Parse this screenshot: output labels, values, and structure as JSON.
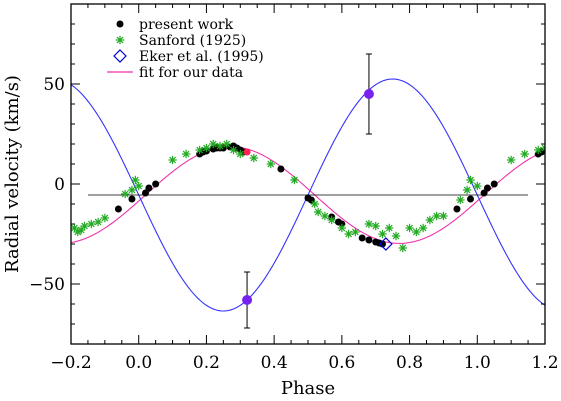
{
  "chart_data": {
    "type": "scatter",
    "xlabel": "Phase",
    "ylabel": "Radial velocity (km/s)",
    "xlim": [
      -0.2,
      1.2
    ],
    "ylim": [
      -80,
      90
    ],
    "x_ticks": [
      -0.2,
      0.0,
      0.2,
      0.4,
      0.6,
      0.8,
      1.0,
      1.2
    ],
    "x_tick_labels": [
      "−0.2",
      "0.0",
      "0.2",
      "0.4",
      "0.6",
      "0.8",
      "1.0",
      "1.2"
    ],
    "y_ticks": [
      -50,
      0,
      50
    ],
    "y_tick_labels": [
      "−50",
      "0",
      "50"
    ],
    "legend_position": "top-left",
    "systemic_velocity_line": {
      "y": -5.5,
      "x_range": [
        -0.15,
        1.15
      ],
      "color": "#000000"
    },
    "series": [
      {
        "name": "present work",
        "kind": "points",
        "marker": "filled-circle",
        "color": "#000000",
        "points": [
          [
            -0.06,
            -12.5
          ],
          [
            -0.02,
            -7.5
          ],
          [
            0.02,
            -4.5
          ],
          [
            0.03,
            -2
          ],
          [
            0.05,
            0
          ],
          [
            0.18,
            15
          ],
          [
            0.19,
            16
          ],
          [
            0.2,
            16.5
          ],
          [
            0.22,
            17.5
          ],
          [
            0.23,
            18
          ],
          [
            0.24,
            18
          ],
          [
            0.25,
            18
          ],
          [
            0.27,
            18.5
          ],
          [
            0.28,
            19
          ],
          [
            0.29,
            18
          ],
          [
            0.3,
            17
          ],
          [
            0.31,
            16
          ],
          [
            0.42,
            7.5
          ],
          [
            0.5,
            -7
          ],
          [
            0.51,
            -8
          ],
          [
            0.57,
            -16.5
          ],
          [
            0.59,
            -19
          ],
          [
            0.6,
            -20
          ],
          [
            0.66,
            -27
          ],
          [
            0.68,
            -28
          ],
          [
            0.7,
            -29
          ],
          [
            0.71,
            -29.5
          ],
          [
            0.72,
            -30
          ],
          [
            0.94,
            -12.5
          ],
          [
            0.98,
            -7.5
          ],
          [
            1.02,
            -4.5
          ],
          [
            1.03,
            -2
          ],
          [
            1.05,
            0
          ],
          [
            1.18,
            15
          ],
          [
            1.19,
            16
          ]
        ]
      },
      {
        "name": "Sanford (1925)",
        "kind": "points",
        "marker": "asterisk",
        "color": "#22aa22",
        "points": [
          [
            -0.19,
            -22
          ],
          [
            -0.18,
            -24
          ],
          [
            -0.17,
            -23
          ],
          [
            -0.16,
            -21
          ],
          [
            -0.14,
            -20
          ],
          [
            -0.12,
            -19
          ],
          [
            -0.1,
            -17
          ],
          [
            -0.04,
            -5
          ],
          [
            -0.02,
            -3
          ],
          [
            -0.01,
            2
          ],
          [
            0.0,
            -1
          ],
          [
            0.1,
            12
          ],
          [
            0.14,
            15
          ],
          [
            0.18,
            17
          ],
          [
            0.2,
            18
          ],
          [
            0.22,
            20
          ],
          [
            0.24,
            19
          ],
          [
            0.26,
            20
          ],
          [
            0.28,
            17
          ],
          [
            0.3,
            15
          ],
          [
            0.34,
            13
          ],
          [
            0.39,
            10
          ],
          [
            0.46,
            2
          ],
          [
            0.52,
            -10
          ],
          [
            0.53,
            -14
          ],
          [
            0.55,
            -16
          ],
          [
            0.57,
            -18
          ],
          [
            0.6,
            -22
          ],
          [
            0.62,
            -25
          ],
          [
            0.64,
            -24
          ],
          [
            0.68,
            -20
          ],
          [
            0.7,
            -21
          ],
          [
            0.72,
            -25
          ],
          [
            0.74,
            -22
          ],
          [
            0.76,
            -26
          ],
          [
            0.78,
            -32
          ],
          [
            0.8,
            -22
          ],
          [
            0.82,
            -24
          ],
          [
            0.84,
            -22
          ],
          [
            0.86,
            -18
          ],
          [
            0.88,
            -16
          ],
          [
            0.9,
            -16
          ],
          [
            0.95,
            -8
          ],
          [
            0.97,
            -3
          ],
          [
            0.98,
            2
          ],
          [
            1.0,
            -1
          ],
          [
            1.1,
            12
          ],
          [
            1.14,
            15
          ],
          [
            1.18,
            17
          ],
          [
            1.2,
            18
          ]
        ]
      },
      {
        "name": "Eker et al. (1995)",
        "kind": "points",
        "marker": "open-diamond",
        "color": "#0000dd",
        "points": [
          [
            0.73,
            -30
          ]
        ]
      },
      {
        "name": "fit for our data",
        "kind": "curve",
        "color": "#ee33aa",
        "model": {
          "offset": -5.5,
          "amplitude": 24.2,
          "phase_of_max": 0.27
        }
      },
      {
        "name": "",
        "kind": "curve",
        "color": "#3333ff",
        "model": {
          "offset": -5.5,
          "amplitude": 58,
          "phase_of_max": 0.75
        }
      },
      {
        "name": "",
        "kind": "points-with-error",
        "marker": "filled-circle",
        "color": "#7722ee",
        "points": [
          {
            "x": 0.32,
            "y": -58,
            "err": 14
          },
          {
            "x": 0.68,
            "y": 45,
            "err": 20
          }
        ]
      },
      {
        "name": "",
        "kind": "points",
        "marker": "filled-circle",
        "color": "#ff2255",
        "points": [
          [
            0.32,
            16
          ]
        ]
      }
    ],
    "legend": [
      {
        "label": "present work",
        "marker": "filled-circle",
        "color": "#000000"
      },
      {
        "label": "Sanford (1925)",
        "marker": "asterisk",
        "color": "#22aa22"
      },
      {
        "label": "Eker et al. (1995)",
        "marker": "open-diamond",
        "color": "#0000dd"
      },
      {
        "label": "fit for our data",
        "marker": "line",
        "color": "#ee33aa"
      }
    ]
  }
}
